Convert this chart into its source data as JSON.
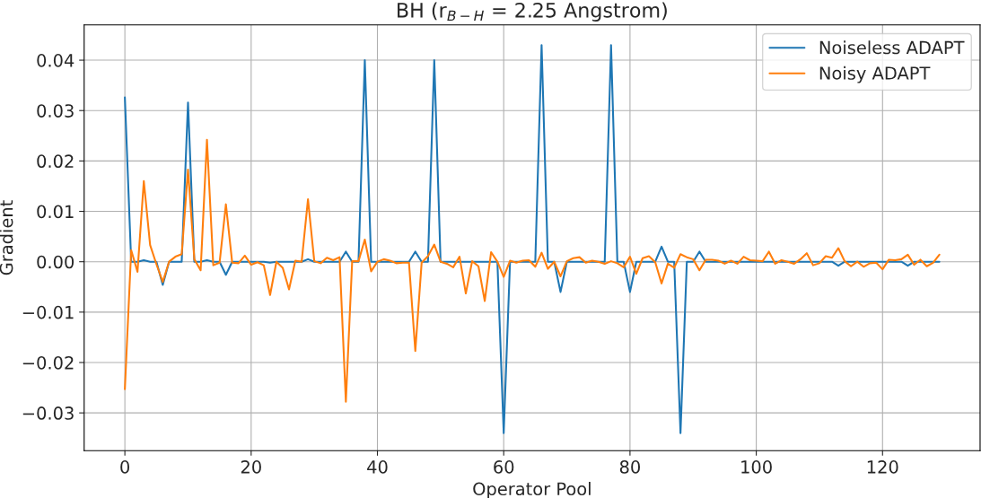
{
  "chart_data": {
    "type": "line",
    "title": "BH (r$_{B−H}$ = 2.25 Angstrom)",
    "xlabel": "Operator Pool",
    "ylabel": "Gradient",
    "x": [
      0,
      1,
      2,
      3,
      4,
      5,
      6,
      7,
      8,
      9,
      10,
      11,
      12,
      13,
      14,
      15,
      16,
      17,
      18,
      19,
      20,
      21,
      22,
      23,
      24,
      25,
      26,
      27,
      28,
      29,
      30,
      31,
      32,
      33,
      34,
      35,
      36,
      37,
      38,
      39,
      40,
      41,
      42,
      43,
      44,
      45,
      46,
      47,
      48,
      49,
      50,
      51,
      52,
      53,
      54,
      55,
      56,
      57,
      58,
      59,
      60,
      61,
      62,
      63,
      64,
      65,
      66,
      67,
      68,
      69,
      70,
      71,
      72,
      73,
      74,
      75,
      76,
      77,
      78,
      79,
      80,
      81,
      82,
      83,
      84,
      85,
      86,
      87,
      88,
      89,
      90,
      91,
      92,
      93,
      94,
      95,
      96,
      97,
      98,
      99,
      100,
      101,
      102,
      103,
      104,
      105,
      106,
      107,
      108,
      109,
      110,
      111,
      112,
      113,
      114,
      115,
      116,
      117,
      118,
      119,
      120,
      121,
      122,
      123,
      124,
      125,
      126,
      127,
      128,
      129
    ],
    "series": [
      {
        "name": "Noiseless ADAPT",
        "color": "#1f77b4",
        "values": [
          0.0326,
          0,
          0,
          0.0003,
          0,
          0,
          -0.0046,
          0,
          0,
          0,
          0.0316,
          0,
          0,
          0.0003,
          0,
          0,
          -0.0026,
          0,
          0,
          0,
          0,
          0,
          0,
          -0.0002,
          0,
          0,
          0,
          0,
          0,
          0.0005,
          0,
          0,
          0,
          0,
          0,
          0.002,
          0,
          0,
          0.04,
          0,
          0,
          0,
          0,
          0,
          0,
          0,
          0.002,
          0,
          0,
          0.04,
          0,
          0,
          0,
          0,
          0,
          0,
          0,
          0,
          0,
          0,
          -0.034,
          0,
          0,
          0,
          0,
          0,
          0.043,
          0,
          0,
          -0.006,
          0,
          0,
          0,
          0,
          0,
          0,
          0,
          0.043,
          0,
          0,
          -0.006,
          0,
          0,
          0,
          0,
          0.003,
          0,
          0,
          -0.034,
          0,
          0,
          0.002,
          0,
          0,
          0,
          0,
          0,
          0,
          0,
          0,
          0,
          0,
          0,
          0,
          0,
          0,
          0,
          0,
          0,
          0,
          0,
          0,
          0,
          -0.0008,
          0,
          0,
          0,
          0,
          0,
          0,
          0,
          0,
          0,
          0,
          -0.0008,
          0,
          0,
          0,
          0,
          0
        ]
      },
      {
        "name": "Noisy ADAPT",
        "color": "#ff7f0e",
        "values": [
          -0.0253,
          0.0023,
          -0.002,
          0.016,
          0.0033,
          -0.0005,
          -0.004,
          0,
          0.001,
          0.0015,
          0.0183,
          0.0005,
          -0.0017,
          0.0242,
          -0.0007,
          -0.0002,
          0.0114,
          -0.0002,
          -0.0003,
          0.0012,
          -0.0006,
          -0.0001,
          -0.0007,
          -0.0066,
          0,
          -0.0012,
          -0.0055,
          0.0002,
          0,
          0.0124,
          0.0001,
          -0.0003,
          0.0008,
          0.0003,
          0.0009,
          -0.0278,
          0.0001,
          0.0001,
          0.0044,
          -0.0019,
          0,
          0.0005,
          0.0002,
          -0.0003,
          -0.0002,
          -0.0002,
          -0.0177,
          -0.0002,
          0.0011,
          0.0034,
          0,
          -0.0004,
          -0.0011,
          0.001,
          -0.0063,
          0.0001,
          -0.0009,
          -0.0078,
          0.0019,
          0,
          -0.003,
          0.0002,
          -0.0002,
          0.0002,
          0.0003,
          -0.001,
          0.0018,
          -0.0014,
          0,
          -0.0029,
          0.0001,
          0.0007,
          0.0009,
          -0.0002,
          0.0002,
          0,
          -0.0004,
          0.0001,
          -0.0003,
          -0.0011,
          0.001,
          -0.0024,
          0.0007,
          0.0011,
          -0.0001,
          -0.0043,
          -0.0004,
          -0.0012,
          0.0015,
          0.0009,
          0.0005,
          -0.0017,
          0.0004,
          0.0004,
          0.0002,
          -0.0004,
          0.0002,
          -0.0004,
          0.001,
          0.0003,
          0.0002,
          0.0001,
          0.002,
          -0.0004,
          0.0003,
          0,
          -0.0004,
          0.0005,
          0.0017,
          -0.0007,
          -0.0003,
          0.0011,
          0.0008,
          0.0027,
          0.0001,
          -0.0009,
          0,
          -0.001,
          -0.0003,
          -0.0002,
          -0.0015,
          0.0004,
          0.0003,
          0.0005,
          0.0014,
          -0.0006,
          0.0004,
          -0.0009,
          -0.0002,
          0.0014
        ]
      }
    ],
    "xlim": [
      -6.45,
      135.45
    ],
    "xticks": [
      0,
      20,
      40,
      60,
      80,
      100,
      120
    ],
    "ylim": [
      -0.0375,
      0.047
    ],
    "yticks": [
      {
        "value": -0.03,
        "label": "−0.03"
      },
      {
        "value": -0.02,
        "label": "−0.02"
      },
      {
        "value": -0.01,
        "label": "−0.01"
      },
      {
        "value": 0,
        "label": "0.00"
      },
      {
        "value": 0.01,
        "label": "0.01"
      },
      {
        "value": 0.02,
        "label": "0.02"
      },
      {
        "value": 0.03,
        "label": "0.03"
      },
      {
        "value": 0.04,
        "label": "0.04"
      }
    ],
    "grid": true,
    "legend": "top right",
    "marker": "none",
    "line_style": "solid"
  }
}
